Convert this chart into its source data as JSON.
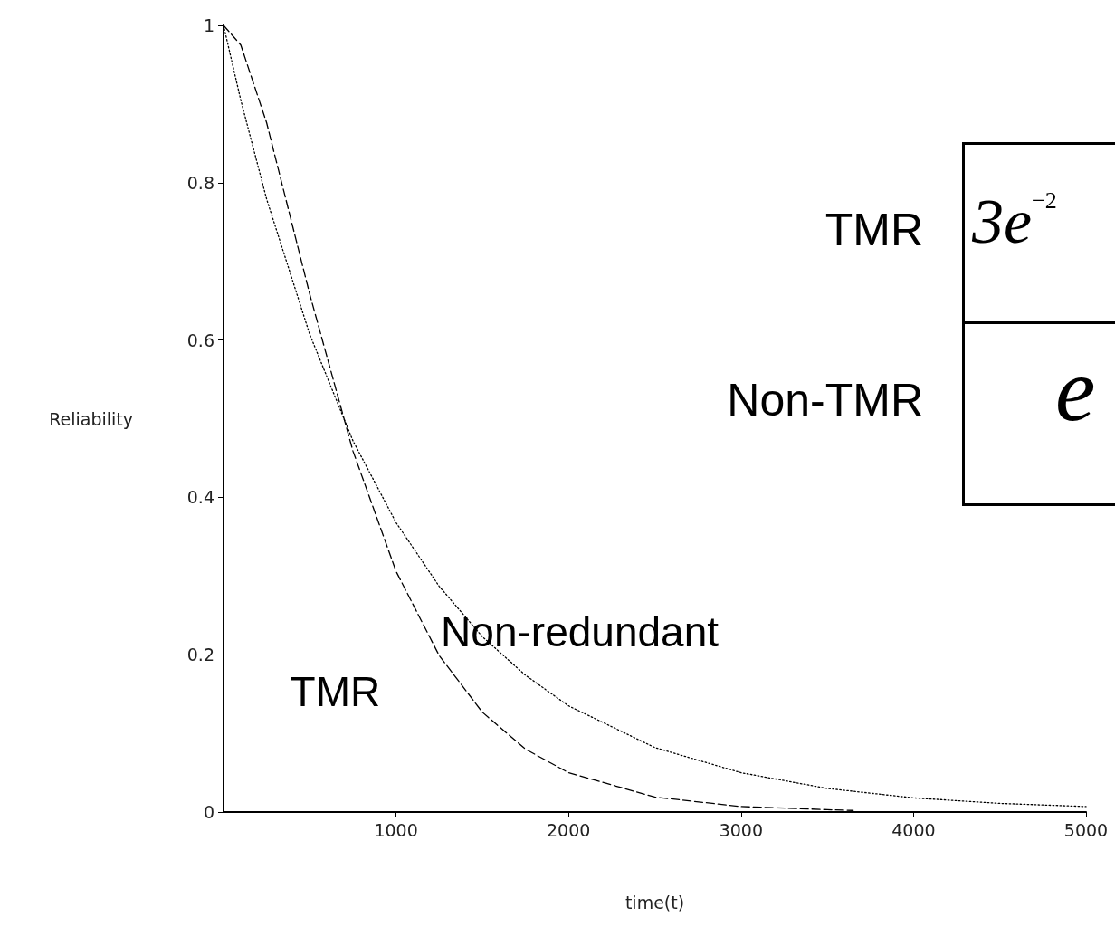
{
  "chart_data": {
    "type": "line",
    "xlabel": "time(t)",
    "ylabel": "Reliability",
    "xlim": [
      0,
      5000
    ],
    "xticks": [
      1000,
      2000,
      3000,
      4000,
      5000
    ],
    "ylim": [
      0,
      1
    ],
    "yticks": [
      0,
      0.2,
      0.4,
      0.6,
      0.8,
      1
    ],
    "grid": false,
    "legend": false,
    "marker": "none",
    "series": [
      {
        "name": "TMR",
        "color": "#000000",
        "line_style": "dashed",
        "x": [
          0,
          100,
          250,
          500,
          750,
          1000,
          1250,
          1500,
          1750,
          2000,
          2500,
          3000,
          3500,
          3650
        ],
        "values": [
          1,
          0.975,
          0.876,
          0.658,
          0.459,
          0.306,
          0.199,
          0.127,
          0.08,
          0.05,
          0.019,
          0.007,
          0.003,
          0.002
        ]
      },
      {
        "name": "Non-redundant",
        "color": "#000000",
        "line_style": "dotted",
        "x": [
          0,
          100,
          250,
          500,
          750,
          1000,
          1250,
          1500,
          1750,
          2000,
          2500,
          3000,
          3500,
          4000,
          4500,
          5000
        ],
        "values": [
          1,
          0.905,
          0.779,
          0.607,
          0.472,
          0.368,
          0.287,
          0.223,
          0.174,
          0.135,
          0.082,
          0.05,
          0.03,
          0.018,
          0.011,
          0.007
        ]
      }
    ],
    "annotations": [
      "TMR",
      "Non-TMR",
      "3e$^{−2}$",
      "e"
    ]
  }
}
